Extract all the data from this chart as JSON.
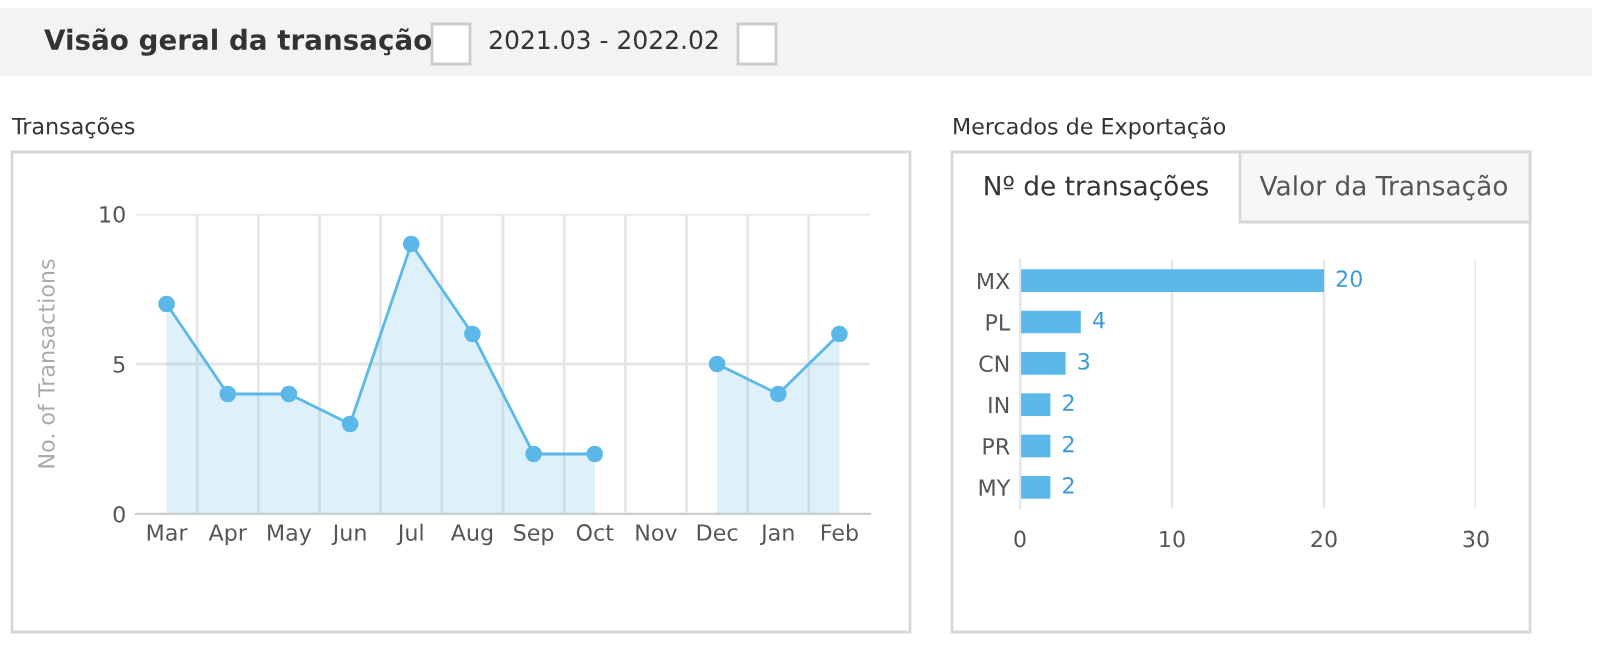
{
  "chart_data": [
    {
      "type": "area",
      "title": "Transações",
      "ylabel": "No. of Transactions",
      "annotations": [
        "Visão geral da transação",
        "2021.03 - 2022.02"
      ],
      "categories": [
        "Mar",
        "Apr",
        "May",
        "Jun",
        "Jul",
        "Aug",
        "Sep",
        "Oct",
        "Nov",
        "Dec",
        "Jan",
        "Feb"
      ],
      "series": [
        {
          "color": "#5bb8e8",
          "values": [
            7,
            4,
            4,
            3,
            9,
            6,
            2,
            2,
            null,
            5,
            4,
            6
          ]
        }
      ],
      "ylim": [
        0,
        10
      ],
      "yticks": [
        0,
        5,
        10
      ],
      "grid": true,
      "marker": "circle",
      "line_style": "solid",
      "legend": false
    },
    {
      "type": "bar",
      "orientation": "horizontal",
      "title": "Mercados de Exportação",
      "annotations": [
        "Nº de transações",
        "Valor da Transação"
      ],
      "categories": [
        "MX",
        "PL",
        "CN",
        "IN",
        "PR",
        "MY"
      ],
      "series": [
        {
          "color": "#5bb8e8",
          "values": [
            20,
            4,
            3,
            2,
            2,
            2
          ]
        }
      ],
      "xlim": [
        0,
        30
      ],
      "xticks": [
        0,
        10,
        20,
        30
      ],
      "grid": "x",
      "data_labels": true,
      "legend": false
    }
  ]
}
